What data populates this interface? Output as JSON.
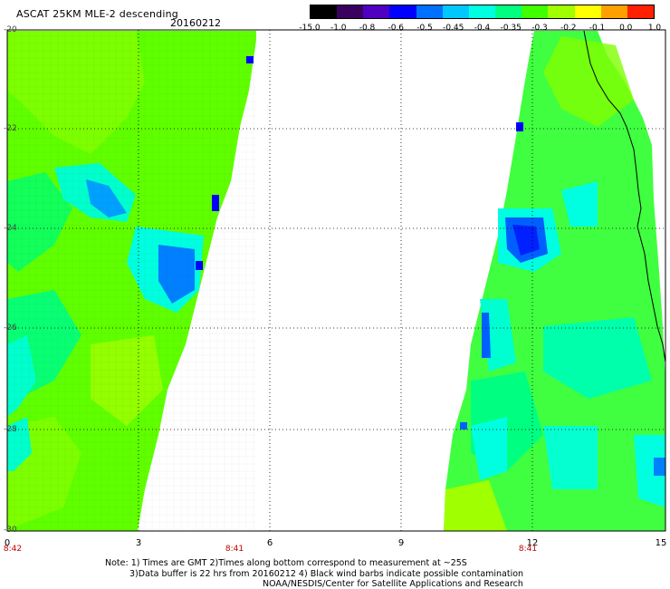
{
  "header": {
    "title": "ASCAT 25KM MLE-2 descending",
    "date": "20160212"
  },
  "colorbar": {
    "labels": [
      "-15.0",
      "-1.0",
      "-0.8",
      "-0.6",
      "-0.5",
      "-0.45",
      "-0.4",
      "-0.35",
      "-0.3",
      "-0.2",
      "-0.1",
      "0.0",
      "1.0"
    ],
    "colors": [
      "#000000",
      "#3a0060",
      "#5000c0",
      "#0000ff",
      "#0070ff",
      "#00c8ff",
      "#00ffe0",
      "#00ff80",
      "#40ff00",
      "#a0ff00",
      "#ffff00",
      "#ffa000",
      "#ff2000"
    ]
  },
  "axes": {
    "x_ticks": [
      "0",
      "3",
      "6",
      "9",
      "12",
      "15"
    ],
    "y_ticks": [
      "-20",
      "-22",
      "-24",
      "-26",
      "-28",
      "-30"
    ],
    "time_labels": [
      "8:42",
      "8:41",
      "8:41"
    ]
  },
  "notes": {
    "line1": "Note: 1) Times are GMT 2)Times along bottom correspond to measurement at ~25S",
    "line2": "3)Data buffer is 22 hrs from 20160212 4) Black wind barbs indicate possible contamination",
    "line3": "NOAA/NESDIS/Center for Satellite Applications and Research"
  }
}
